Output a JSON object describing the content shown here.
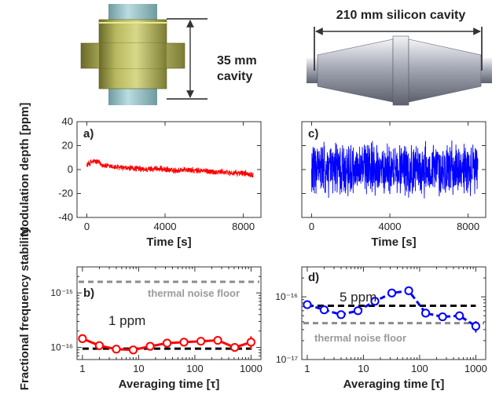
{
  "illustrations": {
    "small_cavity_label_line1": "35 mm",
    "small_cavity_label_line2": "cavity",
    "large_cavity_label": "210 mm silicon cavity"
  },
  "chart_data": [
    {
      "id": "a",
      "panel_label": "a)",
      "type": "line",
      "xlabel": "Time [s]",
      "ylabel": "Modulation depth [ppm]",
      "xlim": [
        -500,
        8900
      ],
      "ylim": [
        -40,
        40
      ],
      "xticks": [
        0,
        4000,
        8000
      ],
      "yticks": [
        40,
        20,
        0,
        -20,
        -40
      ],
      "x_tick_labels": [
        "0",
        "4000",
        "8000"
      ],
      "y_tick_labels": [
        "40",
        "20",
        "0",
        "-20",
        "-40"
      ],
      "grid": false,
      "series": [
        {
          "color": "#ff0000",
          "x": [
            0,
            200,
            400,
            600,
            800,
            1000,
            1500,
            2000,
            2500,
            3000,
            3500,
            4000,
            4500,
            5000,
            5500,
            6000,
            6500,
            7000,
            7500,
            8000,
            8500
          ],
          "values": [
            4,
            6,
            7,
            6,
            4,
            3,
            2,
            1,
            1,
            0,
            1,
            0,
            -1,
            0,
            -1,
            -1,
            -2,
            -2,
            -3,
            -3,
            -4
          ],
          "noise_amplitude_ppm": 3
        }
      ]
    },
    {
      "id": "c",
      "panel_label": "c)",
      "type": "line",
      "xlabel": "Time [s]",
      "ylabel": "",
      "xlim": [
        -500,
        8900
      ],
      "ylim": [
        -40,
        40
      ],
      "xticks": [
        0,
        4000,
        8000
      ],
      "yticks": [
        40,
        20,
        0,
        -20,
        -40
      ],
      "x_tick_labels": [
        "0",
        "4000",
        "8000"
      ],
      "y_tick_labels": [],
      "grid": false,
      "series": [
        {
          "color": "#0000ff",
          "x": [
            0,
            8500
          ],
          "values": [
            0,
            0
          ],
          "noise_amplitude_ppm": 25
        }
      ]
    },
    {
      "id": "b",
      "panel_label": "b)",
      "type": "line",
      "xlabel": "Averaging time [τ]",
      "ylabel": "Fractional frequency stability",
      "x_scale": "log",
      "y_scale": "log",
      "xlim": [
        0.8,
        1500
      ],
      "ylim": [
        6e-17,
        3e-15
      ],
      "xticks": [
        1,
        10,
        100,
        1000
      ],
      "x_tick_labels": [
        "1",
        "10",
        "100",
        "1000"
      ],
      "yticks": [
        1e-16,
        1e-15
      ],
      "y_tick_labels": [
        "10⁻¹⁶",
        "10⁻¹⁵"
      ],
      "grid": false,
      "annotations": {
        "thermal_label": "thermal noise floor",
        "ppm_label": "1 ppm"
      },
      "reference_lines": [
        {
          "kind": "thermal",
          "y": 1.6e-15,
          "color": "#8c8c8c"
        },
        {
          "kind": "ppm",
          "y": 9.5e-17,
          "color": "#000000",
          "x_range": [
            1,
            1000
          ]
        }
      ],
      "series": [
        {
          "color": "#ff0000",
          "x": [
            1,
            2,
            4,
            8,
            16,
            32,
            64,
            128,
            256,
            512,
            1000
          ],
          "values": [
            1.45e-16,
            1.08e-16,
            9.3e-17,
            9e-17,
            1.05e-16,
            1.2e-16,
            1.25e-16,
            1.3e-16,
            1.35e-16,
            1e-16,
            1.25e-16
          ],
          "errors": [
            1e-17,
            8e-18,
            7e-18,
            7e-18,
            8e-18,
            1e-17,
            1e-17,
            1.1e-17,
            1.4e-17,
            1.2e-17,
            3.5e-17
          ]
        }
      ]
    },
    {
      "id": "d",
      "panel_label": "d)",
      "type": "line",
      "xlabel": "Averaging time [τ]",
      "ylabel": "",
      "x_scale": "log",
      "y_scale": "log",
      "xlim": [
        0.8,
        1500
      ],
      "ylim": [
        1e-17,
        3e-16
      ],
      "xticks": [
        1,
        10,
        100,
        1000
      ],
      "x_tick_labels": [
        "1",
        "10",
        "100",
        "1000"
      ],
      "yticks": [
        1e-17,
        1e-16
      ],
      "y_tick_labels": [
        "10⁻¹⁷",
        "10⁻¹⁶"
      ],
      "grid": false,
      "annotations": {
        "thermal_label": "thermal noise floor",
        "ppm_label": "5 ppm"
      },
      "reference_lines": [
        {
          "kind": "thermal",
          "y": 3.8e-17,
          "color": "#8c8c8c"
        },
        {
          "kind": "ppm",
          "y": 7.2e-17,
          "color": "#000000",
          "x_range": [
            1,
            1000
          ]
        }
      ],
      "series": [
        {
          "color": "#0000ff",
          "x": [
            1,
            2,
            4,
            8,
            16,
            32,
            64,
            128,
            256,
            512,
            1000
          ],
          "values": [
            7.5e-17,
            6.2e-17,
            5.2e-17,
            6e-17,
            8.5e-17,
            1.15e-16,
            1.25e-16,
            5.5e-17,
            4.8e-17,
            5e-17,
            3.4e-17
          ],
          "errors": [
            4e-18,
            4e-18,
            4e-18,
            5e-18,
            6e-18,
            8e-18,
            9e-18,
            6e-18,
            6e-18,
            8e-18,
            7e-18
          ]
        }
      ]
    }
  ]
}
